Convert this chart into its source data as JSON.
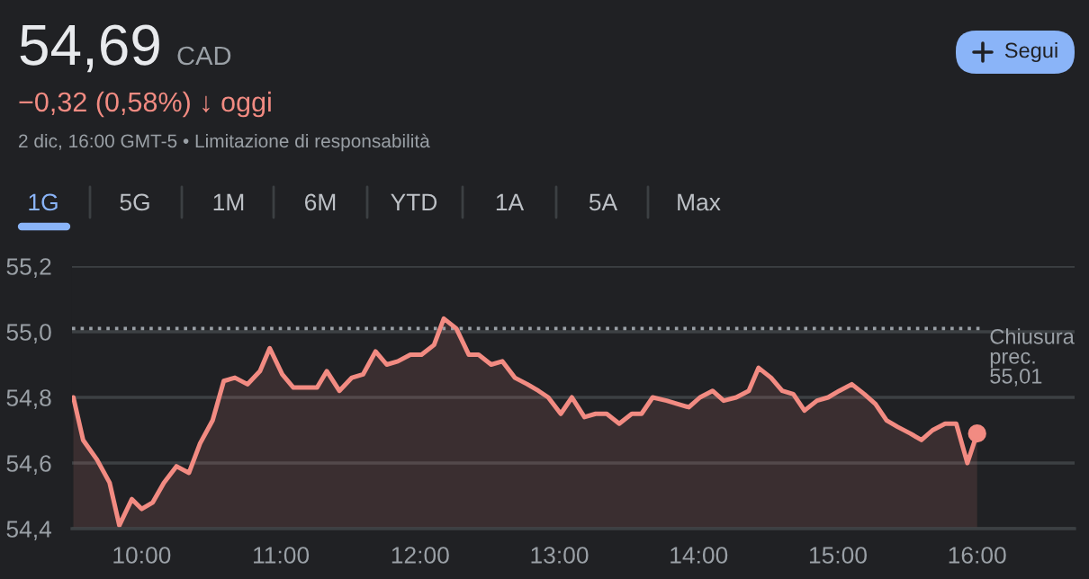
{
  "chart_data": {
    "type": "area",
    "title": "54,69",
    "subtitle": "−0,32 (0,58%) ↓ oggi",
    "annotations": [
      "CAD",
      "2 dic, 16:00 GMT-5 • Limitazione di responsabilità",
      "1G",
      "5G",
      "1M",
      "6M",
      "YTD",
      "1A",
      "5A",
      "Max",
      "Segui"
    ],
    "series": [
      {
        "color": "#f28b82",
        "x": [
          9.51,
          9.58,
          9.68,
          9.77,
          9.84,
          9.93,
          10.0,
          10.08,
          10.16,
          10.25,
          10.34,
          10.42,
          10.51,
          10.59,
          10.67,
          10.76,
          10.85,
          10.92,
          11.01,
          11.09,
          11.17,
          11.26,
          11.33,
          11.42,
          11.51,
          11.59,
          11.68,
          11.76,
          11.84,
          11.93,
          12.01,
          12.1,
          12.17,
          12.26,
          12.35,
          12.42,
          12.51,
          12.59,
          12.68,
          12.77,
          12.85,
          12.92,
          13.01,
          13.09,
          13.18,
          13.26,
          13.34,
          13.43,
          13.52,
          13.59,
          13.67,
          13.77,
          13.85,
          13.93,
          14.01,
          14.1,
          14.18,
          14.27,
          14.36,
          14.43,
          14.52,
          14.6,
          14.68,
          14.76,
          14.85,
          14.93,
          15.01,
          15.1,
          15.19,
          15.27,
          15.35,
          15.43,
          15.52,
          15.6,
          15.68,
          15.77,
          15.85,
          15.93,
          16.0
        ],
        "values": [
          54.8,
          54.67,
          54.61,
          54.54,
          54.41,
          54.49,
          54.46,
          54.48,
          54.54,
          54.59,
          54.57,
          54.66,
          54.73,
          54.85,
          54.86,
          54.84,
          54.88,
          54.95,
          54.87,
          54.83,
          54.83,
          54.83,
          54.88,
          54.82,
          54.86,
          54.87,
          54.94,
          54.9,
          54.91,
          54.93,
          54.93,
          54.96,
          55.04,
          55.01,
          54.93,
          54.93,
          54.9,
          54.91,
          54.86,
          54.84,
          54.82,
          54.8,
          54.75,
          54.8,
          54.74,
          54.75,
          54.75,
          54.72,
          54.75,
          54.75,
          54.8,
          54.79,
          54.78,
          54.77,
          54.8,
          54.82,
          54.79,
          54.8,
          54.82,
          54.89,
          54.86,
          54.82,
          54.81,
          54.76,
          54.79,
          54.8,
          54.82,
          54.84,
          54.81,
          54.78,
          54.73,
          54.71,
          54.69,
          54.67,
          54.7,
          54.72,
          54.72,
          54.6,
          54.69
        ]
      },
      {
        "type": "scatter",
        "color": "#f28b82",
        "x": [
          16.0
        ],
        "values": [
          54.69
        ]
      }
    ],
    "xlim": [
      9.5,
      16.7
    ],
    "xticks": [
      {
        "value": 10,
        "label": "10:00"
      },
      {
        "value": 11,
        "label": "11:00"
      },
      {
        "value": 12,
        "label": "12:00"
      },
      {
        "value": 13,
        "label": "13:00"
      },
      {
        "value": 14,
        "label": "14:00"
      },
      {
        "value": 15,
        "label": "15:00"
      },
      {
        "value": 16,
        "label": "16:00"
      }
    ],
    "ylim": [
      54.4,
      55.2
    ],
    "yticks": [
      {
        "value": 54.4,
        "label": "54,4"
      },
      {
        "value": 54.6,
        "label": "54,6"
      },
      {
        "value": 54.8,
        "label": "54,8"
      },
      {
        "value": 55.0,
        "label": "55,0"
      },
      {
        "value": 55.2,
        "label": "55,2"
      }
    ],
    "grid": "y",
    "ref_lines": [
      {
        "axis": "y",
        "value": 55.01,
        "label": "Chiusura\nprec.\n55,01",
        "color": "#9aa0a6",
        "line_style": "dotted"
      }
    ]
  }
}
